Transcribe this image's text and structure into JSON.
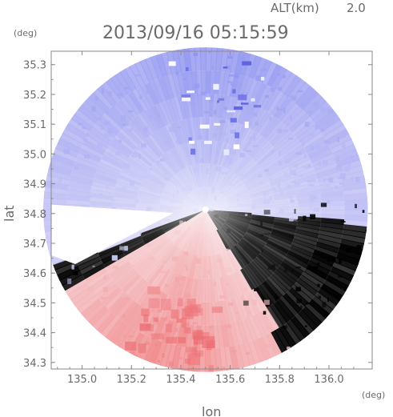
{
  "chart_data": {
    "type": "heatmap",
    "altitude_label": "ALT(km)",
    "altitude_value": "2.0",
    "timestamp": "2013/09/16 05:15:59",
    "xlabel": "lon",
    "ylabel": "lat",
    "x_unit": "(deg)",
    "y_unit": "(deg)",
    "xlim": [
      134.875,
      136.175
    ],
    "ylim": [
      34.278,
      35.345
    ],
    "x_ticks": [
      135.0,
      135.2,
      135.4,
      135.6,
      135.8,
      136.0
    ],
    "x_tick_labels": [
      "135.0",
      "135.2",
      "135.4",
      "135.6",
      "135.8",
      "136.0"
    ],
    "y_ticks": [
      34.3,
      34.4,
      34.5,
      34.6,
      34.7,
      34.8,
      34.9,
      35.0,
      35.1,
      35.2,
      35.3
    ],
    "y_tick_labels": [
      "34.3",
      "34.4",
      "34.5",
      "34.6",
      "34.7",
      "34.8",
      "34.9",
      "35.0",
      "35.1",
      "35.2",
      "35.3"
    ],
    "grid": false,
    "radar_center": {
      "lon": 135.5,
      "lat": 34.813
    },
    "radar_range_deg": 0.545,
    "colors": {
      "toward": "#7e84ee",
      "away": "#f08080",
      "neutral": "#f7f4fa",
      "axis": "#8a8a8a",
      "text": "#6a6a6a"
    }
  }
}
